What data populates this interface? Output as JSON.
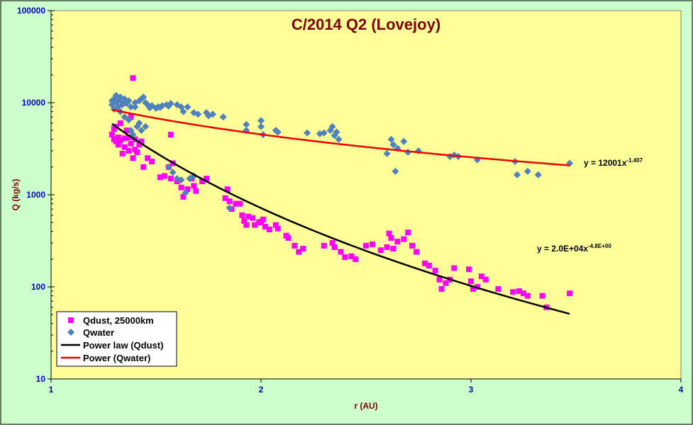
{
  "chart_data": {
    "type": "scatter",
    "title": "C/2014 Q2 (Lovejoy)",
    "xlabel": "r (AU)",
    "ylabel": "Q (kg/s)",
    "xlim": [
      1,
      4
    ],
    "ylim": [
      10,
      100000
    ],
    "y_scale": "log",
    "x_ticks": [
      "1",
      "2",
      "3",
      "4"
    ],
    "y_ticks": [
      "10",
      "100",
      "1000",
      "10000",
      "100000"
    ],
    "plot_background": "#ffff99",
    "figure_background": "#ccffcc",
    "grid": false,
    "legend_position": "bottom-left",
    "series": [
      {
        "name": "Qdust, 25000km",
        "kind": "scatter",
        "marker": "square",
        "color": "#ff00ff",
        "points": [
          [
            1.29,
            4500
          ],
          [
            1.3,
            5200
          ],
          [
            1.3,
            4000
          ],
          [
            1.31,
            3800
          ],
          [
            1.31,
            5500
          ],
          [
            1.32,
            4200
          ],
          [
            1.32,
            3500
          ],
          [
            1.33,
            6000
          ],
          [
            1.33,
            3900
          ],
          [
            1.34,
            2800
          ],
          [
            1.35,
            4100
          ],
          [
            1.35,
            3300
          ],
          [
            1.36,
            5000
          ],
          [
            1.37,
            4200
          ],
          [
            1.37,
            3000
          ],
          [
            1.38,
            7000
          ],
          [
            1.38,
            3600
          ],
          [
            1.39,
            18500
          ],
          [
            1.39,
            2500
          ],
          [
            1.4,
            4000
          ],
          [
            1.4,
            3100
          ],
          [
            1.41,
            2900
          ],
          [
            1.42,
            3500
          ],
          [
            1.43,
            3800
          ],
          [
            1.44,
            2000
          ],
          [
            1.46,
            2500
          ],
          [
            1.48,
            2300
          ],
          [
            1.52,
            1550
          ],
          [
            1.54,
            1600
          ],
          [
            1.56,
            2000
          ],
          [
            1.57,
            4500
          ],
          [
            1.57,
            1500
          ],
          [
            1.58,
            2200
          ],
          [
            1.6,
            1400
          ],
          [
            1.62,
            1200
          ],
          [
            1.63,
            950
          ],
          [
            1.65,
            1150
          ],
          [
            1.67,
            1500
          ],
          [
            1.68,
            1250
          ],
          [
            1.69,
            1100
          ],
          [
            1.72,
            1400
          ],
          [
            1.74,
            1500
          ],
          [
            1.83,
            920
          ],
          [
            1.84,
            1150
          ],
          [
            1.85,
            850
          ],
          [
            1.86,
            700
          ],
          [
            1.88,
            800
          ],
          [
            1.9,
            800
          ],
          [
            1.91,
            600
          ],
          [
            1.92,
            520
          ],
          [
            1.93,
            470
          ],
          [
            1.94,
            580
          ],
          [
            1.96,
            560
          ],
          [
            1.97,
            470
          ],
          [
            1.99,
            500
          ],
          [
            2.0,
            510
          ],
          [
            2.01,
            540
          ],
          [
            2.02,
            450
          ],
          [
            2.04,
            420
          ],
          [
            2.07,
            470
          ],
          [
            2.08,
            430
          ],
          [
            2.12,
            360
          ],
          [
            2.13,
            340
          ],
          [
            2.16,
            280
          ],
          [
            2.18,
            240
          ],
          [
            2.2,
            260
          ],
          [
            2.3,
            280
          ],
          [
            2.34,
            300
          ],
          [
            2.35,
            270
          ],
          [
            2.38,
            240
          ],
          [
            2.4,
            210
          ],
          [
            2.43,
            215
          ],
          [
            2.45,
            200
          ],
          [
            2.5,
            280
          ],
          [
            2.53,
            290
          ],
          [
            2.57,
            250
          ],
          [
            2.6,
            270
          ],
          [
            2.61,
            380
          ],
          [
            2.62,
            340
          ],
          [
            2.63,
            260
          ],
          [
            2.65,
            310
          ],
          [
            2.68,
            330
          ],
          [
            2.7,
            390
          ],
          [
            2.72,
            280
          ],
          [
            2.74,
            240
          ],
          [
            2.78,
            180
          ],
          [
            2.8,
            170
          ],
          [
            2.83,
            150
          ],
          [
            2.85,
            120
          ],
          [
            2.86,
            95
          ],
          [
            2.88,
            110
          ],
          [
            2.9,
            120
          ],
          [
            2.92,
            160
          ],
          [
            2.99,
            155
          ],
          [
            3.0,
            115
          ],
          [
            3.01,
            95
          ],
          [
            3.03,
            100
          ],
          [
            3.05,
            130
          ],
          [
            3.07,
            120
          ],
          [
            3.13,
            95
          ],
          [
            3.2,
            88
          ],
          [
            3.23,
            90
          ],
          [
            3.25,
            85
          ],
          [
            3.27,
            80
          ],
          [
            3.34,
            80
          ],
          [
            3.36,
            60
          ],
          [
            3.47,
            85
          ]
        ]
      },
      {
        "name": "Qwater",
        "kind": "scatter",
        "marker": "diamond",
        "color": "#4f81bd",
        "points": [
          [
            1.29,
            9500
          ],
          [
            1.29,
            10500
          ],
          [
            1.3,
            11000
          ],
          [
            1.3,
            8500
          ],
          [
            1.31,
            10000
          ],
          [
            1.31,
            12000
          ],
          [
            1.32,
            9000
          ],
          [
            1.32,
            10500
          ],
          [
            1.33,
            11500
          ],
          [
            1.33,
            8000
          ],
          [
            1.34,
            10000
          ],
          [
            1.34,
            9500
          ],
          [
            1.35,
            11000
          ],
          [
            1.35,
            7000
          ],
          [
            1.36,
            9800
          ],
          [
            1.37,
            6500
          ],
          [
            1.37,
            10500
          ],
          [
            1.38,
            9000
          ],
          [
            1.38,
            5000
          ],
          [
            1.39,
            4500
          ],
          [
            1.4,
            9000
          ],
          [
            1.4,
            10000
          ],
          [
            1.41,
            5500
          ],
          [
            1.42,
            10500
          ],
          [
            1.42,
            6000
          ],
          [
            1.43,
            11000
          ],
          [
            1.43,
            5000
          ],
          [
            1.44,
            11500
          ],
          [
            1.45,
            10000
          ],
          [
            1.45,
            5500
          ],
          [
            1.46,
            9500
          ],
          [
            1.47,
            8800
          ],
          [
            1.48,
            9300
          ],
          [
            1.5,
            8700
          ],
          [
            1.51,
            9000
          ],
          [
            1.52,
            8900
          ],
          [
            1.53,
            9300
          ],
          [
            1.55,
            9500
          ],
          [
            1.56,
            9200
          ],
          [
            1.57,
            9800
          ],
          [
            1.6,
            9500
          ],
          [
            1.62,
            9000
          ],
          [
            1.63,
            8000
          ],
          [
            1.65,
            9000
          ],
          [
            1.68,
            7800
          ],
          [
            1.7,
            7500
          ],
          [
            1.74,
            7800
          ],
          [
            1.75,
            7200
          ],
          [
            1.77,
            7500
          ],
          [
            1.82,
            7000
          ],
          [
            1.93,
            5800
          ],
          [
            1.93,
            5000
          ],
          [
            2.0,
            6400
          ],
          [
            2.0,
            5500
          ],
          [
            2.01,
            4500
          ],
          [
            2.07,
            5000
          ],
          [
            2.08,
            4800
          ],
          [
            2.22,
            4700
          ],
          [
            2.28,
            4600
          ],
          [
            2.3,
            4700
          ],
          [
            2.33,
            5000
          ],
          [
            2.34,
            5500
          ],
          [
            2.35,
            4400
          ],
          [
            2.36,
            4800
          ],
          [
            2.37,
            4000
          ],
          [
            2.6,
            2800
          ],
          [
            2.62,
            4000
          ],
          [
            2.63,
            3500
          ],
          [
            2.64,
            1800
          ],
          [
            2.65,
            3200
          ],
          [
            2.68,
            3800
          ],
          [
            2.7,
            2900
          ],
          [
            2.75,
            3000
          ],
          [
            2.9,
            2600
          ],
          [
            2.92,
            2700
          ],
          [
            2.94,
            2600
          ],
          [
            3.03,
            2400
          ],
          [
            3.21,
            2300
          ],
          [
            3.22,
            1650
          ],
          [
            3.27,
            1800
          ],
          [
            3.32,
            1650
          ],
          [
            3.47,
            2200
          ],
          [
            1.56,
            2000
          ],
          [
            1.58,
            1750
          ],
          [
            1.6,
            1500
          ],
          [
            1.62,
            1450
          ],
          [
            1.64,
            1050
          ],
          [
            1.66,
            1500
          ],
          [
            1.68,
            1600
          ],
          [
            1.85,
            720
          ]
        ]
      },
      {
        "name": "Power law (Qdust)",
        "kind": "trendline",
        "color": "#000000",
        "equation": "y = 2.0E+04x",
        "exponent_label": "-4.8E+00",
        "coefficient": 20000,
        "exponent": -4.8,
        "x_range": [
          1.29,
          3.47
        ]
      },
      {
        "name": "Power (Qwater)",
        "kind": "trendline",
        "color": "#ee0000",
        "equation": "y = 12001x",
        "exponent_label": "-1.407",
        "coefficient": 12001,
        "exponent": -1.407,
        "x_range": [
          1.29,
          3.47
        ]
      }
    ]
  }
}
